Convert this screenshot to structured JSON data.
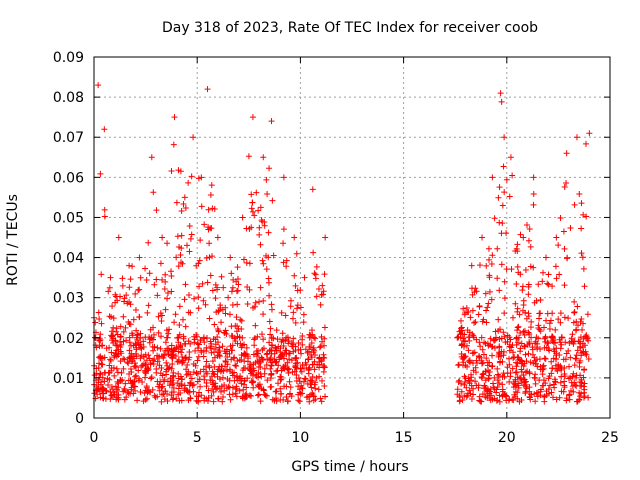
{
  "chart_data": {
    "type": "scatter",
    "title": "Day 318 of 2023, Rate Of TEC Index for receiver coob",
    "xlabel": "GPS time / hours",
    "ylabel": "ROTI / TECUs",
    "xlim": [
      0,
      25
    ],
    "ylim": [
      0,
      0.09
    ],
    "x_ticks": [
      0,
      5,
      10,
      15,
      20,
      25
    ],
    "y_ticks": [
      0,
      0.01,
      0.02,
      0.03,
      0.04,
      0.05,
      0.06,
      0.07,
      0.08,
      0.09
    ],
    "grid": true,
    "marker": "plus",
    "color": "#ff0000",
    "data_segments": [
      {
        "x_start": 0.0,
        "x_end": 11.2
      },
      {
        "x_start": 17.6,
        "x_end": 24.0
      }
    ],
    "envelope": [
      {
        "x": 0.0,
        "y": 0.025
      },
      {
        "x": 0.2,
        "y": 0.083
      },
      {
        "x": 0.5,
        "y": 0.072
      },
      {
        "x": 0.8,
        "y": 0.035
      },
      {
        "x": 1.2,
        "y": 0.045
      },
      {
        "x": 1.7,
        "y": 0.038
      },
      {
        "x": 2.2,
        "y": 0.04
      },
      {
        "x": 2.8,
        "y": 0.065
      },
      {
        "x": 3.3,
        "y": 0.045
      },
      {
        "x": 3.9,
        "y": 0.075
      },
      {
        "x": 4.4,
        "y": 0.055
      },
      {
        "x": 4.8,
        "y": 0.07
      },
      {
        "x": 5.2,
        "y": 0.06
      },
      {
        "x": 5.5,
        "y": 0.082
      },
      {
        "x": 6.0,
        "y": 0.045
      },
      {
        "x": 6.6,
        "y": 0.04
      },
      {
        "x": 7.2,
        "y": 0.05
      },
      {
        "x": 7.7,
        "y": 0.075
      },
      {
        "x": 8.2,
        "y": 0.065
      },
      {
        "x": 8.6,
        "y": 0.074
      },
      {
        "x": 9.2,
        "y": 0.06
      },
      {
        "x": 9.7,
        "y": 0.045
      },
      {
        "x": 10.2,
        "y": 0.035
      },
      {
        "x": 10.6,
        "y": 0.057
      },
      {
        "x": 11.2,
        "y": 0.045
      },
      {
        "x": 17.6,
        "y": 0.02
      },
      {
        "x": 18.3,
        "y": 0.038
      },
      {
        "x": 18.8,
        "y": 0.045
      },
      {
        "x": 19.3,
        "y": 0.06
      },
      {
        "x": 19.7,
        "y": 0.081
      },
      {
        "x": 20.2,
        "y": 0.065
      },
      {
        "x": 20.8,
        "y": 0.045
      },
      {
        "x": 21.3,
        "y": 0.06
      },
      {
        "x": 21.9,
        "y": 0.04
      },
      {
        "x": 22.4,
        "y": 0.045
      },
      {
        "x": 22.9,
        "y": 0.066
      },
      {
        "x": 23.4,
        "y": 0.07
      },
      {
        "x": 24.0,
        "y": 0.071
      }
    ],
    "baseline_band": [
      0.004,
      0.02
    ]
  }
}
